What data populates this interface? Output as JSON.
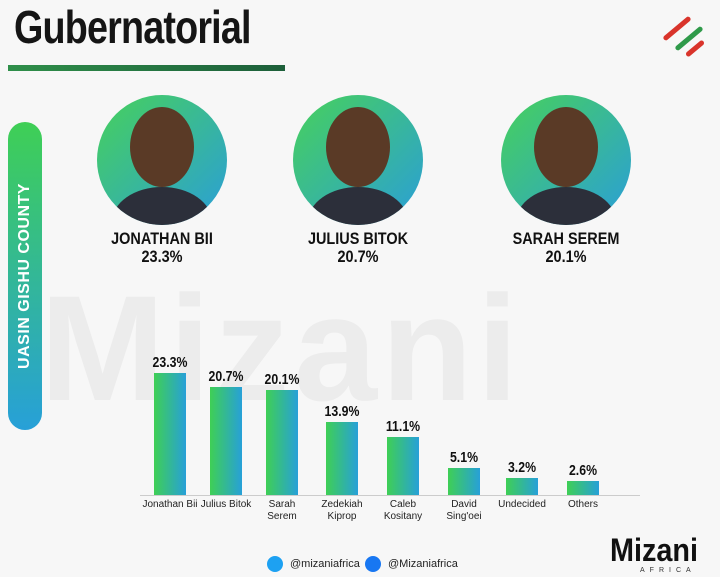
{
  "title": "Gubernatorial",
  "county": "UASIN GISHU COUNTY",
  "watermark": "Mizani",
  "candidates": [
    {
      "name": "JONATHAN BII",
      "share": "23.3%"
    },
    {
      "name": "JULIUS BITOK",
      "share": "20.7%"
    },
    {
      "name": "SARAH SEREM",
      "share": "20.1%"
    }
  ],
  "chart_data": {
    "type": "bar",
    "categories": [
      "Jonathan Bii",
      "Julius Bitok",
      "Sarah Serem",
      "Zedekiah Kiprop",
      "Caleb Kositany",
      "David Sing'oei",
      "Undecided",
      "Others"
    ],
    "values": [
      23.3,
      20.7,
      20.1,
      13.9,
      11.1,
      5.1,
      3.2,
      2.6
    ],
    "value_labels": [
      "23.3%",
      "20.7%",
      "20.1%",
      "13.9%",
      "11.1%",
      "5.1%",
      "3.2%",
      "2.6%"
    ],
    "ylim": [
      0,
      25
    ]
  },
  "footer": {
    "twitter": "@mizaniafrica",
    "facebook": "@Mizaniafrica",
    "logo": "Mizani",
    "logo_sub": "AFRICA"
  }
}
